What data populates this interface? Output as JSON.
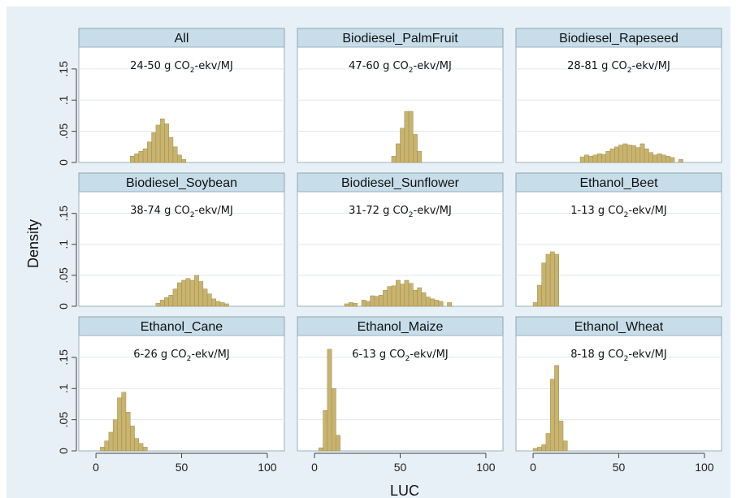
{
  "chart_data": {
    "type": "bar",
    "xlabel": "LUC",
    "ylabel": "Density",
    "xlim": [
      -10,
      110
    ],
    "ylim": [
      0,
      0.185
    ],
    "x_ticks": [
      "0",
      "50",
      "100"
    ],
    "y_ticks": [
      "0",
      ".05",
      ".1",
      ".15"
    ],
    "bin_width": 2.5,
    "colors": {
      "outer_background": "#e7f0f6",
      "plot_background": "#ffffff",
      "title_band": "#c7dde9",
      "bar_fill": "#c8b36f",
      "bar_stroke": "#a18d4d",
      "grid": "#dde7ee",
      "axis": "#444444"
    },
    "panels": [
      {
        "title": "All",
        "annotation": {
          "pre": "24-50 g CO",
          "sub": "2",
          "post": "-ekv/MJ"
        },
        "bins": [
          {
            "x": 20,
            "density": 0.01
          },
          {
            "x": 22.5,
            "density": 0.014
          },
          {
            "x": 25,
            "density": 0.018
          },
          {
            "x": 27.5,
            "density": 0.022
          },
          {
            "x": 30,
            "density": 0.033
          },
          {
            "x": 32.5,
            "density": 0.048
          },
          {
            "x": 35,
            "density": 0.06
          },
          {
            "x": 37.5,
            "density": 0.07
          },
          {
            "x": 40,
            "density": 0.062
          },
          {
            "x": 42.5,
            "density": 0.04
          },
          {
            "x": 45,
            "density": 0.025
          },
          {
            "x": 47.5,
            "density": 0.012
          },
          {
            "x": 50,
            "density": 0.005
          }
        ]
      },
      {
        "title": "Biodiesel_PalmFruit",
        "annotation": {
          "pre": "47-60 g CO",
          "sub": "2",
          "post": "-ekv/MJ"
        },
        "bins": [
          {
            "x": 45,
            "density": 0.01
          },
          {
            "x": 47.5,
            "density": 0.03
          },
          {
            "x": 50,
            "density": 0.055
          },
          {
            "x": 52.5,
            "density": 0.082
          },
          {
            "x": 55,
            "density": 0.082
          },
          {
            "x": 57.5,
            "density": 0.045
          },
          {
            "x": 60,
            "density": 0.018
          }
        ]
      },
      {
        "title": "Biodiesel_Rapeseed",
        "annotation": {
          "pre": "28-81 g CO",
          "sub": "2",
          "post": "-ekv/MJ"
        },
        "bins": [
          {
            "x": 27.5,
            "density": 0.009
          },
          {
            "x": 30,
            "density": 0.012
          },
          {
            "x": 32.5,
            "density": 0.01
          },
          {
            "x": 35,
            "density": 0.012
          },
          {
            "x": 37.5,
            "density": 0.014
          },
          {
            "x": 40,
            "density": 0.013
          },
          {
            "x": 42.5,
            "density": 0.018
          },
          {
            "x": 45,
            "density": 0.022
          },
          {
            "x": 47.5,
            "density": 0.025
          },
          {
            "x": 50,
            "density": 0.028
          },
          {
            "x": 52.5,
            "density": 0.03
          },
          {
            "x": 55,
            "density": 0.028
          },
          {
            "x": 57.5,
            "density": 0.027
          },
          {
            "x": 60,
            "density": 0.024
          },
          {
            "x": 62.5,
            "density": 0.03
          },
          {
            "x": 65,
            "density": 0.022
          },
          {
            "x": 67.5,
            "density": 0.016
          },
          {
            "x": 70,
            "density": 0.012
          },
          {
            "x": 72.5,
            "density": 0.014
          },
          {
            "x": 75,
            "density": 0.012
          },
          {
            "x": 77.5,
            "density": 0.01
          },
          {
            "x": 80,
            "density": 0.008
          },
          {
            "x": 85,
            "density": 0.005
          }
        ]
      },
      {
        "title": "Biodiesel_Soybean",
        "annotation": {
          "pre": "38-74 g CO",
          "sub": "2",
          "post": "-ekv/MJ"
        },
        "bins": [
          {
            "x": 35,
            "density": 0.005
          },
          {
            "x": 37.5,
            "density": 0.01
          },
          {
            "x": 40,
            "density": 0.014
          },
          {
            "x": 42.5,
            "density": 0.018
          },
          {
            "x": 45,
            "density": 0.028
          },
          {
            "x": 47.5,
            "density": 0.038
          },
          {
            "x": 50,
            "density": 0.042
          },
          {
            "x": 52.5,
            "density": 0.045
          },
          {
            "x": 55,
            "density": 0.042
          },
          {
            "x": 57.5,
            "density": 0.05
          },
          {
            "x": 60,
            "density": 0.04
          },
          {
            "x": 62.5,
            "density": 0.028
          },
          {
            "x": 65,
            "density": 0.02
          },
          {
            "x": 67.5,
            "density": 0.012
          },
          {
            "x": 70,
            "density": 0.008
          },
          {
            "x": 72.5,
            "density": 0.006
          },
          {
            "x": 75,
            "density": 0.004
          }
        ]
      },
      {
        "title": "Biodiesel_Sunflower",
        "annotation": {
          "pre": "31-72 g CO",
          "sub": "2",
          "post": "-ekv/MJ"
        },
        "bins": [
          {
            "x": 17.5,
            "density": 0.004
          },
          {
            "x": 20,
            "density": 0.006
          },
          {
            "x": 22.5,
            "density": 0.005
          },
          {
            "x": 27.5,
            "density": 0.01
          },
          {
            "x": 30,
            "density": 0.008
          },
          {
            "x": 32.5,
            "density": 0.017
          },
          {
            "x": 35,
            "density": 0.016
          },
          {
            "x": 37.5,
            "density": 0.018
          },
          {
            "x": 40,
            "density": 0.026
          },
          {
            "x": 42.5,
            "density": 0.032
          },
          {
            "x": 45,
            "density": 0.033
          },
          {
            "x": 47.5,
            "density": 0.042
          },
          {
            "x": 50,
            "density": 0.036
          },
          {
            "x": 52.5,
            "density": 0.042
          },
          {
            "x": 55,
            "density": 0.037
          },
          {
            "x": 57.5,
            "density": 0.026
          },
          {
            "x": 60,
            "density": 0.03
          },
          {
            "x": 62.5,
            "density": 0.022
          },
          {
            "x": 65,
            "density": 0.015
          },
          {
            "x": 67.5,
            "density": 0.012
          },
          {
            "x": 70,
            "density": 0.01
          },
          {
            "x": 72.5,
            "density": 0.008
          },
          {
            "x": 77.5,
            "density": 0.006
          }
        ]
      },
      {
        "title": "Ethanol_Beet",
        "annotation": {
          "pre": "1-13 g CO",
          "sub": "2",
          "post": "-ekv/MJ"
        },
        "bins": [
          {
            "x": 0,
            "density": 0.006
          },
          {
            "x": 2.5,
            "density": 0.034
          },
          {
            "x": 5,
            "density": 0.07
          },
          {
            "x": 7.5,
            "density": 0.084
          },
          {
            "x": 10,
            "density": 0.088
          },
          {
            "x": 12.5,
            "density": 0.084
          }
        ]
      },
      {
        "title": "Ethanol_Cane",
        "annotation": {
          "pre": "6-26 g CO",
          "sub": "2",
          "post": "-ekv/MJ"
        },
        "bins": [
          {
            "x": 2.5,
            "density": 0.006
          },
          {
            "x": 5,
            "density": 0.016
          },
          {
            "x": 7.5,
            "density": 0.03
          },
          {
            "x": 10,
            "density": 0.05
          },
          {
            "x": 12.5,
            "density": 0.085
          },
          {
            "x": 15,
            "density": 0.094
          },
          {
            "x": 17.5,
            "density": 0.062
          },
          {
            "x": 20,
            "density": 0.04
          },
          {
            "x": 22.5,
            "density": 0.02
          },
          {
            "x": 25,
            "density": 0.012
          },
          {
            "x": 27.5,
            "density": 0.006
          }
        ]
      },
      {
        "title": "Ethanol_Maize",
        "annotation": {
          "pre": "6-13 g CO",
          "sub": "2",
          "post": "-ekv/MJ"
        },
        "bins": [
          {
            "x": 2.5,
            "density": 0.005
          },
          {
            "x": 5,
            "density": 0.065
          },
          {
            "x": 7.5,
            "density": 0.163
          },
          {
            "x": 10,
            "density": 0.1
          },
          {
            "x": 12.5,
            "density": 0.025
          }
        ]
      },
      {
        "title": "Ethanol_Wheat",
        "annotation": {
          "pre": "8-18 g CO",
          "sub": "2",
          "post": "-ekv/MJ"
        },
        "bins": [
          {
            "x": 0,
            "density": 0.004
          },
          {
            "x": 2.5,
            "density": 0.006
          },
          {
            "x": 5,
            "density": 0.01
          },
          {
            "x": 7.5,
            "density": 0.028
          },
          {
            "x": 10,
            "density": 0.115
          },
          {
            "x": 12.5,
            "density": 0.137
          },
          {
            "x": 15,
            "density": 0.048
          },
          {
            "x": 17.5,
            "density": 0.016
          }
        ]
      }
    ]
  }
}
